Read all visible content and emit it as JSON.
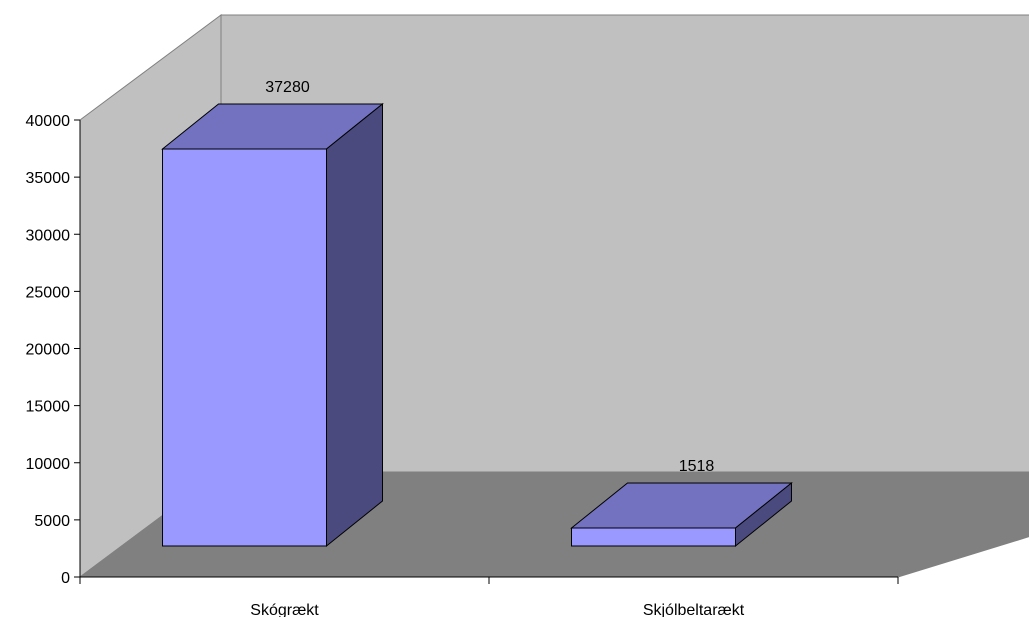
{
  "chart_data": {
    "type": "bar",
    "style": "3d-column",
    "categories": [
      "Skógrækt",
      "Skjólbeltarækt"
    ],
    "values": [
      37280,
      1518
    ],
    "data_labels": [
      "37280",
      "1518"
    ],
    "title": "",
    "xlabel": "",
    "ylabel": "",
    "ylim": [
      0,
      40000
    ],
    "yticks": [
      0,
      5000,
      10000,
      15000,
      20000,
      25000,
      30000,
      35000,
      40000
    ],
    "ytick_labels": [
      "0",
      "5000",
      "10000",
      "15000",
      "20000",
      "25000",
      "30000",
      "35000",
      "40000"
    ],
    "grid": false,
    "legend": "none",
    "colors": {
      "bar_front": "#9999ff",
      "bar_top": "#7272c0",
      "bar_side": "#4a4a7e",
      "back_wall": "#c0c0c0",
      "side_wall": "#c0c0c0",
      "floor": "#808080"
    }
  }
}
